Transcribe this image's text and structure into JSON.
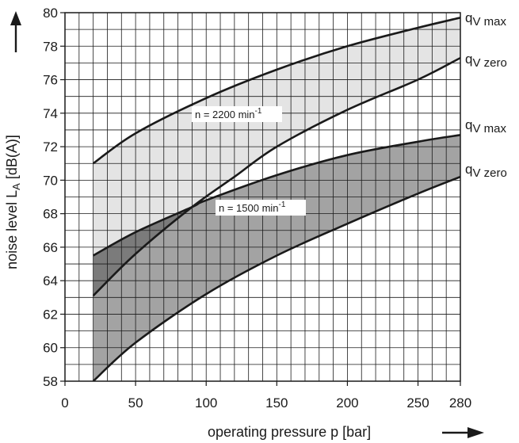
{
  "chart_data": {
    "type": "area",
    "xlabel": "operating pressure p [bar]",
    "ylabel": "noise level L",
    "ylabel_sub": "A",
    "ylabel_unit": " [dB(A)]",
    "xlim": [
      0,
      280
    ],
    "ylim": [
      58,
      80
    ],
    "x_ticks": [
      0,
      50,
      100,
      150,
      200,
      250,
      280
    ],
    "y_ticks": [
      58,
      60,
      62,
      64,
      66,
      68,
      70,
      72,
      74,
      76,
      78,
      80
    ],
    "grid": true,
    "bands": [
      {
        "label": "n = 2200 min",
        "label_sup": "-1",
        "fill": "#e4e4e4",
        "upper": {
          "name": "q",
          "name_sub": "V max",
          "x": [
            20,
            50,
            100,
            150,
            200,
            250,
            280
          ],
          "y": [
            71,
            72.8,
            74.9,
            76.6,
            78.0,
            79.1,
            79.7
          ]
        },
        "lower": {
          "name": "q",
          "name_sub": "V zero",
          "x": [
            20,
            50,
            90,
            120,
            150,
            200,
            250,
            280
          ],
          "y": [
            63.1,
            65.6,
            68.4,
            70.2,
            72.0,
            74.2,
            76.0,
            77.3
          ]
        }
      },
      {
        "label": "n = 1500 min",
        "label_sup": "-1",
        "fill": "#a3a3a3",
        "upper": {
          "name": "q",
          "name_sub": "V max",
          "x": [
            20,
            50,
            90,
            100,
            150,
            200,
            250,
            280
          ],
          "y": [
            65.5,
            66.9,
            68.4,
            68.8,
            70.3,
            71.5,
            72.3,
            72.7
          ]
        },
        "lower": {
          "name": "q",
          "name_sub": "V zero",
          "x": [
            20,
            50,
            100,
            150,
            200,
            250,
            280
          ],
          "y": [
            58,
            60.3,
            63.2,
            65.5,
            67.4,
            69.2,
            70.2
          ]
        }
      }
    ],
    "overlap_fill": "#7b7b7b",
    "axis_arrows": true
  }
}
